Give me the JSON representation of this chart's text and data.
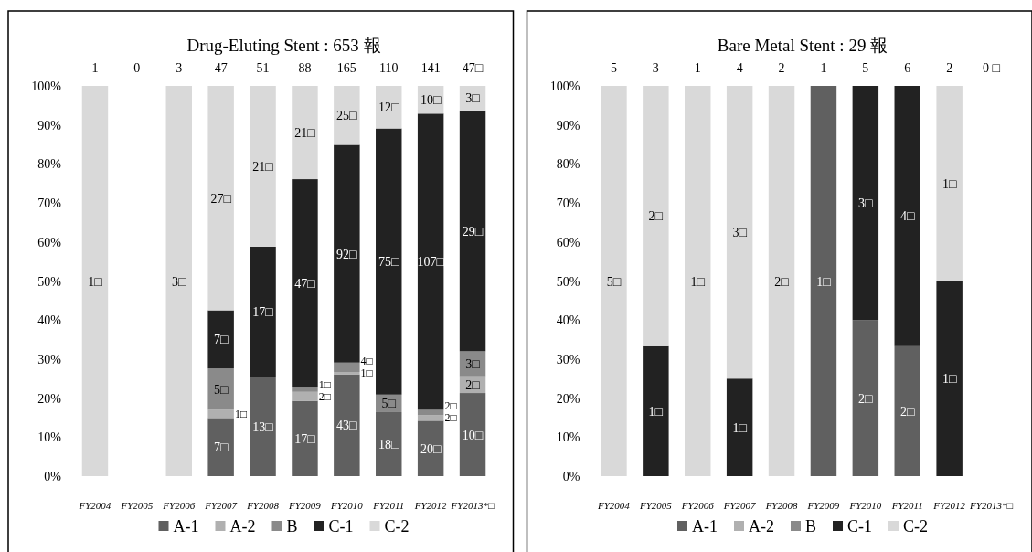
{
  "chart_data": [
    {
      "type": "bar",
      "stacked": true,
      "title": "Drug-Eluting Stent : 653 報",
      "categories": [
        "FY2004",
        "FY2005",
        "FY2006",
        "FY2007",
        "FY2008",
        "FY2009",
        "FY2010",
        "FY2011",
        "FY2012",
        "FY2013*□"
      ],
      "ylim": [
        0,
        100
      ],
      "yticks": [
        {
          "value": 0,
          "label": "0%"
        },
        {
          "value": 10,
          "label": "10%"
        },
        {
          "value": 20,
          "label": "20%"
        },
        {
          "value": 30,
          "label": "30%"
        },
        {
          "value": 40,
          "label": "40%"
        },
        {
          "value": 50,
          "label": "50%"
        },
        {
          "value": 60,
          "label": "60%"
        },
        {
          "value": 70,
          "label": "70%"
        },
        {
          "value": 80,
          "label": "80%"
        },
        {
          "value": 90,
          "label": "90%"
        },
        {
          "value": 100,
          "label": "100%"
        }
      ],
      "legend": "bottom",
      "series": [
        {
          "name": "A-1",
          "color": "#606060",
          "values": [
            null,
            null,
            null,
            14.9,
            25.5,
            19.3,
            26.1,
            16.4,
            14.2,
            21.3
          ]
        },
        {
          "name": "A-2",
          "color": "#b0b0b0",
          "values": [
            null,
            null,
            null,
            2.1,
            null,
            2.3,
            0.6,
            null,
            1.4,
            4.3
          ]
        },
        {
          "name": "B",
          "color": "#8a8a8a",
          "values": [
            null,
            null,
            null,
            10.6,
            null,
            1.1,
            2.4,
            4.5,
            1.4,
            6.4
          ]
        },
        {
          "name": "C-1",
          "color": "#222222",
          "values": [
            null,
            null,
            null,
            14.9,
            33.3,
            53.4,
            55.8,
            68.2,
            75.9,
            61.7
          ]
        },
        {
          "name": "C-2",
          "color": "#d9d9d9",
          "values": [
            100,
            null,
            100,
            57.5,
            41.2,
            23.9,
            15.1,
            10.9,
            7.1,
            6.3
          ]
        }
      ],
      "annotations": [
        "1",
        "0",
        "3",
        "47",
        "51",
        "88",
        "165",
        "110",
        "141",
        "47□",
        "1□",
        "3□",
        "7□",
        "1□",
        "5□",
        "7□",
        "27□",
        "13□",
        "17□",
        "21□",
        "17□",
        "2□",
        "1□",
        "47□",
        "21□",
        "43□",
        "1□",
        "4□",
        "92□",
        "25□",
        "18□",
        "5□",
        "75□",
        "12□",
        "20□",
        "2□",
        "2□",
        "107□",
        "10□",
        "10□",
        "2□",
        "3□",
        "29□",
        "3□"
      ]
    },
    {
      "type": "bar",
      "stacked": true,
      "title": "Bare Metal Stent : 29 報",
      "categories": [
        "FY2004",
        "FY2005",
        "FY2006",
        "FY2007",
        "FY2008",
        "FY2009",
        "FY2010",
        "FY2011",
        "FY2012",
        "FY2013*□"
      ],
      "ylim": [
        0,
        100
      ],
      "yticks": [
        {
          "value": 0,
          "label": "0%"
        },
        {
          "value": 10,
          "label": "10%"
        },
        {
          "value": 20,
          "label": "20%"
        },
        {
          "value": 30,
          "label": "30%"
        },
        {
          "value": 40,
          "label": "40%"
        },
        {
          "value": 50,
          "label": "50%"
        },
        {
          "value": 60,
          "label": "60%"
        },
        {
          "value": 70,
          "label": "70%"
        },
        {
          "value": 80,
          "label": "80%"
        },
        {
          "value": 90,
          "label": "90%"
        },
        {
          "value": 100,
          "label": "100%"
        }
      ],
      "legend": "bottom",
      "series": [
        {
          "name": "A-1",
          "color": "#606060",
          "values": [
            null,
            null,
            null,
            null,
            null,
            100,
            40,
            33.3,
            null,
            null
          ]
        },
        {
          "name": "A-2",
          "color": "#b0b0b0",
          "values": [
            null,
            null,
            null,
            null,
            null,
            null,
            null,
            null,
            null,
            null
          ]
        },
        {
          "name": "B",
          "color": "#8a8a8a",
          "values": [
            null,
            null,
            null,
            null,
            null,
            null,
            null,
            null,
            null,
            null
          ]
        },
        {
          "name": "C-1",
          "color": "#222222",
          "values": [
            null,
            33.3,
            null,
            25,
            null,
            null,
            60,
            66.7,
            50,
            null
          ]
        },
        {
          "name": "C-2",
          "color": "#d9d9d9",
          "values": [
            100,
            66.7,
            100,
            75,
            100,
            null,
            null,
            null,
            50,
            null
          ]
        }
      ],
      "annotations": [
        "5",
        "3",
        "1",
        "4",
        "2",
        "1",
        "5",
        "6",
        "2",
        "0 □",
        "5□",
        "1□",
        "2□",
        "1□",
        "1□",
        "3□",
        "2□",
        "1□",
        "2□",
        "3□",
        "2□",
        "4□",
        "1□",
        "1□"
      ]
    }
  ]
}
